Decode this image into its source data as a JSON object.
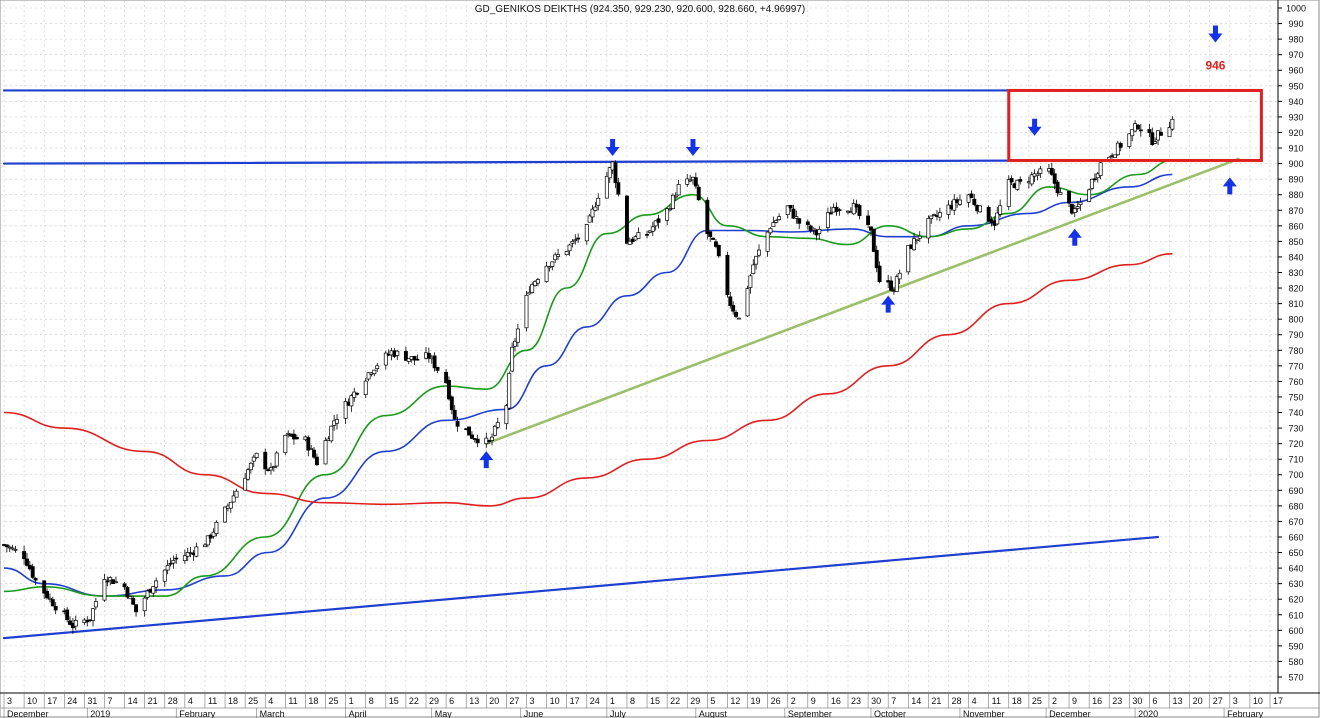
{
  "chart_data": {
    "type": "candlestick",
    "title": "GD_GENIKOS DEIKTHS (924.350, 929.230, 920.600, 928.660, +4.96997)",
    "ylim": [
      565,
      1005
    ],
    "grid": true,
    "y_ticks": [
      570,
      580,
      590,
      600,
      610,
      620,
      630,
      640,
      650,
      660,
      670,
      680,
      690,
      700,
      710,
      720,
      730,
      740,
      750,
      760,
      770,
      780,
      790,
      800,
      810,
      820,
      830,
      840,
      850,
      860,
      870,
      880,
      890,
      900,
      910,
      920,
      930,
      940,
      950,
      960,
      970,
      980,
      990,
      1000
    ],
    "x_start": "2018-12-03",
    "x_end": "2020-02-17",
    "day_ticks": [
      {
        "date": "2018-12-03",
        "label": "3"
      },
      {
        "date": "2018-12-10",
        "label": "10"
      },
      {
        "date": "2018-12-17",
        "label": "17"
      },
      {
        "date": "2018-12-24",
        "label": "24"
      },
      {
        "date": "2018-12-31",
        "label": "31"
      },
      {
        "date": "2019-01-07",
        "label": "7"
      },
      {
        "date": "2019-01-14",
        "label": "14"
      },
      {
        "date": "2019-01-21",
        "label": "21"
      },
      {
        "date": "2019-01-28",
        "label": "28"
      },
      {
        "date": "2019-02-04",
        "label": "4"
      },
      {
        "date": "2019-02-11",
        "label": "11"
      },
      {
        "date": "2019-02-18",
        "label": "18"
      },
      {
        "date": "2019-02-25",
        "label": "25"
      },
      {
        "date": "2019-03-04",
        "label": "4"
      },
      {
        "date": "2019-03-11",
        "label": "11"
      },
      {
        "date": "2019-03-18",
        "label": "18"
      },
      {
        "date": "2019-03-25",
        "label": "25"
      },
      {
        "date": "2019-04-01",
        "label": "1"
      },
      {
        "date": "2019-04-08",
        "label": "8"
      },
      {
        "date": "2019-04-15",
        "label": "15"
      },
      {
        "date": "2019-04-22",
        "label": "22"
      },
      {
        "date": "2019-04-29",
        "label": "29"
      },
      {
        "date": "2019-05-06",
        "label": "6"
      },
      {
        "date": "2019-05-13",
        "label": "13"
      },
      {
        "date": "2019-05-20",
        "label": "20"
      },
      {
        "date": "2019-05-27",
        "label": "27"
      },
      {
        "date": "2019-06-03",
        "label": "3"
      },
      {
        "date": "2019-06-10",
        "label": "10"
      },
      {
        "date": "2019-06-17",
        "label": "17"
      },
      {
        "date": "2019-06-24",
        "label": "24"
      },
      {
        "date": "2019-07-01",
        "label": "1"
      },
      {
        "date": "2019-07-08",
        "label": "8"
      },
      {
        "date": "2019-07-15",
        "label": "15"
      },
      {
        "date": "2019-07-22",
        "label": "22"
      },
      {
        "date": "2019-07-29",
        "label": "29"
      },
      {
        "date": "2019-08-05",
        "label": "5"
      },
      {
        "date": "2019-08-12",
        "label": "12"
      },
      {
        "date": "2019-08-19",
        "label": "19"
      },
      {
        "date": "2019-08-26",
        "label": "26"
      },
      {
        "date": "2019-09-02",
        "label": "2"
      },
      {
        "date": "2019-09-09",
        "label": "9"
      },
      {
        "date": "2019-09-16",
        "label": "16"
      },
      {
        "date": "2019-09-23",
        "label": "23"
      },
      {
        "date": "2019-09-30",
        "label": "30"
      },
      {
        "date": "2019-10-07",
        "label": "7"
      },
      {
        "date": "2019-10-14",
        "label": "14"
      },
      {
        "date": "2019-10-21",
        "label": "21"
      },
      {
        "date": "2019-10-28",
        "label": "28"
      },
      {
        "date": "2019-11-04",
        "label": "4"
      },
      {
        "date": "2019-11-11",
        "label": "11"
      },
      {
        "date": "2019-11-18",
        "label": "18"
      },
      {
        "date": "2019-11-25",
        "label": "25"
      },
      {
        "date": "2019-12-02",
        "label": "2"
      },
      {
        "date": "2019-12-09",
        "label": "9"
      },
      {
        "date": "2019-12-16",
        "label": "16"
      },
      {
        "date": "2019-12-23",
        "label": "23"
      },
      {
        "date": "2019-12-30",
        "label": "30"
      },
      {
        "date": "2020-01-06",
        "label": "6"
      },
      {
        "date": "2020-01-13",
        "label": "13"
      },
      {
        "date": "2020-01-20",
        "label": "20"
      },
      {
        "date": "2020-01-27",
        "label": "27"
      },
      {
        "date": "2020-02-03",
        "label": "3"
      },
      {
        "date": "2020-02-10",
        "label": "10"
      },
      {
        "date": "2020-02-17",
        "label": "17"
      }
    ],
    "month_labels": [
      {
        "date": "2018-12-03",
        "label": "December"
      },
      {
        "date": "2019-01-01",
        "label": "2019"
      },
      {
        "date": "2019-02-01",
        "label": "February"
      },
      {
        "date": "2019-03-01",
        "label": "March"
      },
      {
        "date": "2019-04-01",
        "label": "April"
      },
      {
        "date": "2019-05-01",
        "label": "May"
      },
      {
        "date": "2019-06-01",
        "label": "June"
      },
      {
        "date": "2019-07-01",
        "label": "July"
      },
      {
        "date": "2019-08-01",
        "label": "August"
      },
      {
        "date": "2019-09-01",
        "label": "September"
      },
      {
        "date": "2019-10-01",
        "label": "October"
      },
      {
        "date": "2019-11-01",
        "label": "November"
      },
      {
        "date": "2019-12-01",
        "label": "December"
      },
      {
        "date": "2020-01-01",
        "label": "2020"
      },
      {
        "date": "2020-02-01",
        "label": "February"
      }
    ],
    "price_anchors": [
      [
        "2018-12-03",
        655
      ],
      [
        "2018-12-10",
        648
      ],
      [
        "2018-12-14",
        632
      ],
      [
        "2018-12-19",
        620
      ],
      [
        "2018-12-27",
        603
      ],
      [
        "2019-01-02",
        608
      ],
      [
        "2019-01-07",
        635
      ],
      [
        "2019-01-14",
        628
      ],
      [
        "2019-01-18",
        612
      ],
      [
        "2019-01-24",
        630
      ],
      [
        "2019-01-31",
        645
      ],
      [
        "2019-02-06",
        650
      ],
      [
        "2019-02-12",
        658
      ],
      [
        "2019-02-19",
        680
      ],
      [
        "2019-02-25",
        700
      ],
      [
        "2019-03-01",
        712
      ],
      [
        "2019-03-06",
        702
      ],
      [
        "2019-03-11",
        725
      ],
      [
        "2019-03-18",
        722
      ],
      [
        "2019-03-22",
        708
      ],
      [
        "2019-03-28",
        735
      ],
      [
        "2019-04-03",
        750
      ],
      [
        "2019-04-10",
        768
      ],
      [
        "2019-04-17",
        779
      ],
      [
        "2019-04-25",
        774
      ],
      [
        "2019-04-30",
        776
      ],
      [
        "2019-05-06",
        760
      ],
      [
        "2019-05-09",
        735
      ],
      [
        "2019-05-15",
        725
      ],
      [
        "2019-05-21",
        720
      ],
      [
        "2019-05-27",
        745
      ],
      [
        "2019-05-29",
        780
      ],
      [
        "2019-06-04",
        820
      ],
      [
        "2019-06-10",
        835
      ],
      [
        "2019-06-17",
        845
      ],
      [
        "2019-06-24",
        858
      ],
      [
        "2019-06-28",
        880
      ],
      [
        "2019-07-03",
        900
      ],
      [
        "2019-07-08",
        850
      ],
      [
        "2019-07-15",
        855
      ],
      [
        "2019-07-22",
        870
      ],
      [
        "2019-07-26",
        885
      ],
      [
        "2019-07-31",
        890
      ],
      [
        "2019-08-05",
        855
      ],
      [
        "2019-08-08",
        845
      ],
      [
        "2019-08-13",
        810
      ],
      [
        "2019-08-16",
        800
      ],
      [
        "2019-08-21",
        835
      ],
      [
        "2019-08-27",
        860
      ],
      [
        "2019-09-02",
        872
      ],
      [
        "2019-09-06",
        862
      ],
      [
        "2019-09-12",
        855
      ],
      [
        "2019-09-18",
        872
      ],
      [
        "2019-09-25",
        872
      ],
      [
        "2019-10-01",
        855
      ],
      [
        "2019-10-04",
        825
      ],
      [
        "2019-10-09",
        820
      ],
      [
        "2019-10-14",
        845
      ],
      [
        "2019-10-21",
        862
      ],
      [
        "2019-10-28",
        872
      ],
      [
        "2019-11-04",
        880
      ],
      [
        "2019-11-08",
        870
      ],
      [
        "2019-11-13",
        862
      ],
      [
        "2019-11-18",
        887
      ],
      [
        "2019-11-22",
        887
      ],
      [
        "2019-11-27",
        893
      ],
      [
        "2019-12-02",
        895
      ],
      [
        "2019-12-06",
        880
      ],
      [
        "2019-12-11",
        868
      ],
      [
        "2019-12-16",
        885
      ],
      [
        "2019-12-20",
        900
      ],
      [
        "2019-12-27",
        912
      ],
      [
        "2020-01-02",
        925
      ],
      [
        "2020-01-07",
        915
      ],
      [
        "2020-01-10",
        920
      ],
      [
        "2020-01-14",
        928
      ]
    ],
    "series": [
      {
        "name": "",
        "color": "#1f3fd0",
        "type": "ma",
        "points": [
          [
            "2018-12-03",
            640
          ],
          [
            "2018-12-17",
            630
          ],
          [
            "2019-01-07",
            622
          ],
          [
            "2019-01-28",
            626
          ],
          [
            "2019-02-18",
            635
          ],
          [
            "2019-03-05",
            650
          ],
          [
            "2019-03-25",
            685
          ],
          [
            "2019-04-15",
            715
          ],
          [
            "2019-05-06",
            735
          ],
          [
            "2019-05-27",
            742
          ],
          [
            "2019-06-10",
            770
          ],
          [
            "2019-06-24",
            795
          ],
          [
            "2019-07-08",
            815
          ],
          [
            "2019-07-22",
            830
          ],
          [
            "2019-08-05",
            857
          ],
          [
            "2019-08-20",
            857
          ],
          [
            "2019-09-03",
            856
          ],
          [
            "2019-09-24",
            858
          ],
          [
            "2019-10-07",
            853
          ],
          [
            "2019-10-21",
            853
          ],
          [
            "2019-11-04",
            860
          ],
          [
            "2019-11-25",
            868
          ],
          [
            "2019-12-09",
            875
          ],
          [
            "2019-12-30",
            885
          ],
          [
            "2020-01-14",
            893
          ]
        ]
      },
      {
        "name": "",
        "color": "#1a9a1a",
        "type": "ma",
        "points": [
          [
            "2018-12-03",
            625
          ],
          [
            "2018-12-17",
            628
          ],
          [
            "2019-01-07",
            622
          ],
          [
            "2019-01-28",
            622
          ],
          [
            "2019-02-11",
            635
          ],
          [
            "2019-03-04",
            660
          ],
          [
            "2019-03-25",
            700
          ],
          [
            "2019-04-15",
            738
          ],
          [
            "2019-05-06",
            757
          ],
          [
            "2019-05-20",
            755
          ],
          [
            "2019-06-03",
            780
          ],
          [
            "2019-06-17",
            820
          ],
          [
            "2019-07-01",
            855
          ],
          [
            "2019-07-15",
            867
          ],
          [
            "2019-07-31",
            880
          ],
          [
            "2019-08-12",
            860
          ],
          [
            "2019-08-26",
            853
          ],
          [
            "2019-09-09",
            852
          ],
          [
            "2019-09-23",
            848
          ],
          [
            "2019-10-07",
            860
          ],
          [
            "2019-10-21",
            853
          ],
          [
            "2019-11-04",
            858
          ],
          [
            "2019-11-18",
            868
          ],
          [
            "2019-12-02",
            885
          ],
          [
            "2019-12-16",
            880
          ],
          [
            "2020-01-02",
            893
          ],
          [
            "2020-01-14",
            902
          ]
        ]
      },
      {
        "name": "",
        "color": "#e02020",
        "type": "ma",
        "points": [
          [
            "2018-12-03",
            740
          ],
          [
            "2018-12-24",
            730
          ],
          [
            "2019-01-21",
            715
          ],
          [
            "2019-02-11",
            700
          ],
          [
            "2019-03-04",
            688
          ],
          [
            "2019-03-25",
            682
          ],
          [
            "2019-04-15",
            681
          ],
          [
            "2019-05-06",
            682
          ],
          [
            "2019-05-21",
            680
          ],
          [
            "2019-06-03",
            685
          ],
          [
            "2019-06-24",
            698
          ],
          [
            "2019-07-15",
            710
          ],
          [
            "2019-08-05",
            722
          ],
          [
            "2019-08-26",
            735
          ],
          [
            "2019-09-16",
            752
          ],
          [
            "2019-10-07",
            770
          ],
          [
            "2019-10-28",
            790
          ],
          [
            "2019-11-18",
            810
          ],
          [
            "2019-12-09",
            825
          ],
          [
            "2019-12-30",
            835
          ],
          [
            "2020-01-14",
            842
          ]
        ]
      }
    ],
    "trendlines": [
      {
        "color": "#1f3fd0",
        "width": 2.2,
        "from": [
          "2018-12-03",
          595
        ],
        "to": [
          "2020-01-09",
          660
        ]
      },
      {
        "color": "#9bbf6a",
        "width": 2.6,
        "from": [
          "2019-05-20",
          720
        ],
        "to": [
          "2020-02-06",
          903
        ]
      },
      {
        "color": "#1f3fd0",
        "width": 2.2,
        "from": [
          "2018-12-03",
          900
        ],
        "to": [
          "2019-12-11",
          902
        ]
      },
      {
        "color": "#1f3fd0",
        "width": 2.2,
        "from": [
          "2018-12-03",
          947
        ],
        "to": [
          "2020-02-13",
          947
        ]
      }
    ],
    "box": {
      "color": "#e02020",
      "from": [
        "2019-11-18",
        947
      ],
      "to": [
        "2020-02-14",
        902
      ]
    },
    "arrows": [
      {
        "date": "2019-05-20",
        "price": 710,
        "dir": "up"
      },
      {
        "date": "2019-07-03",
        "price": 910,
        "dir": "down"
      },
      {
        "date": "2019-07-31",
        "price": 910,
        "dir": "down"
      },
      {
        "date": "2019-10-07",
        "price": 810,
        "dir": "up"
      },
      {
        "date": "2019-11-27",
        "price": 923,
        "dir": "down"
      },
      {
        "date": "2019-12-11",
        "price": 853,
        "dir": "up"
      },
      {
        "date": "2020-01-29",
        "price": 983,
        "dir": "down"
      },
      {
        "date": "2020-02-03",
        "price": 886,
        "dir": "up"
      }
    ],
    "annotation": {
      "text": "946",
      "date": "2020-01-29",
      "price": 963,
      "color": "#e02020"
    }
  }
}
